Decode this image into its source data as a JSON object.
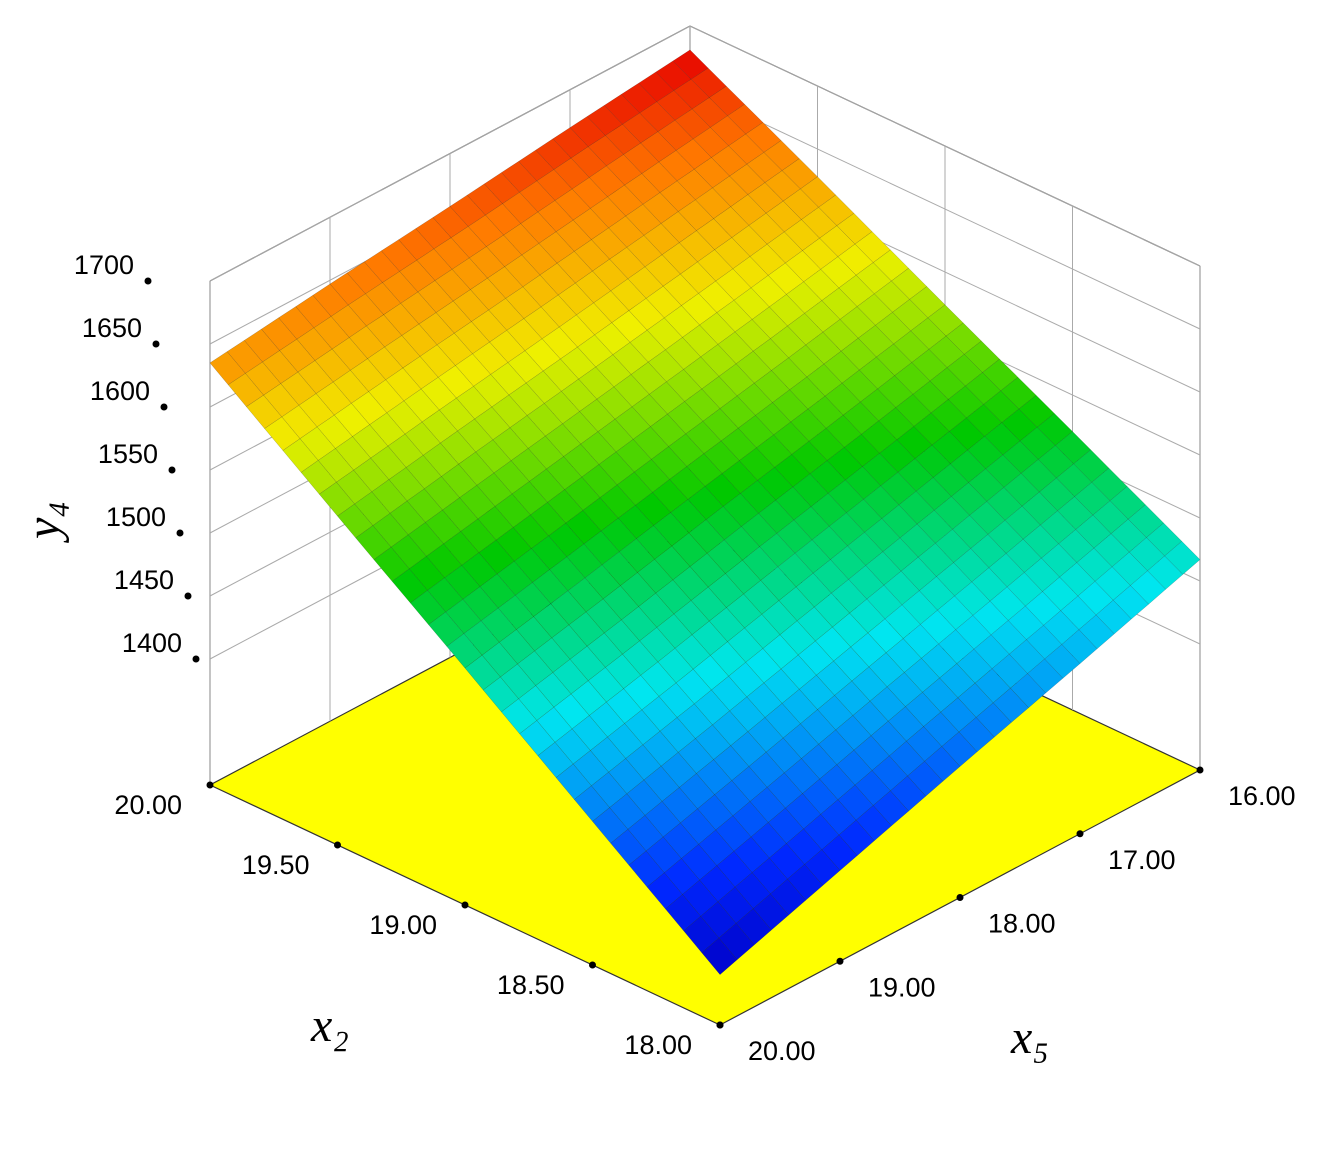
{
  "chart_data": {
    "type": "surface3d",
    "x_label": "x₂",
    "y_label": "x₅",
    "z_label": "y₄",
    "x": [
      18,
      18.5,
      19,
      19.5,
      20
    ],
    "y": [
      16,
      17,
      18,
      19,
      20
    ],
    "z": [
      [
        1467,
        1435,
        1404,
        1372,
        1340
      ],
      [
        1521,
        1494,
        1467,
        1440,
        1414
      ],
      [
        1574,
        1552,
        1531,
        1509,
        1488
      ],
      [
        1628,
        1611,
        1594,
        1578,
        1561
      ],
      [
        1681,
        1670,
        1658,
        1647,
        1635
      ]
    ],
    "xlim": [
      18,
      20
    ],
    "ylim": [
      16,
      20
    ],
    "zlim": [
      1300,
      1700
    ],
    "xticks": [
      {
        "value": 18,
        "label": "18.00"
      },
      {
        "value": 18.5,
        "label": "18.50"
      },
      {
        "value": 19,
        "label": "19.00"
      },
      {
        "value": 19.5,
        "label": "19.50"
      },
      {
        "value": 20,
        "label": "20.00"
      }
    ],
    "yticks": [
      {
        "value": 16,
        "label": "16.00"
      },
      {
        "value": 17,
        "label": "17.00"
      },
      {
        "value": 18,
        "label": "18.00"
      },
      {
        "value": 19,
        "label": "19.00"
      },
      {
        "value": 20,
        "label": "20.00"
      }
    ],
    "zticks": [
      1400,
      1450,
      1500,
      1550,
      1600,
      1650,
      1700
    ],
    "floor_color": "#ffff00",
    "colormap": "jet",
    "grid": true
  }
}
